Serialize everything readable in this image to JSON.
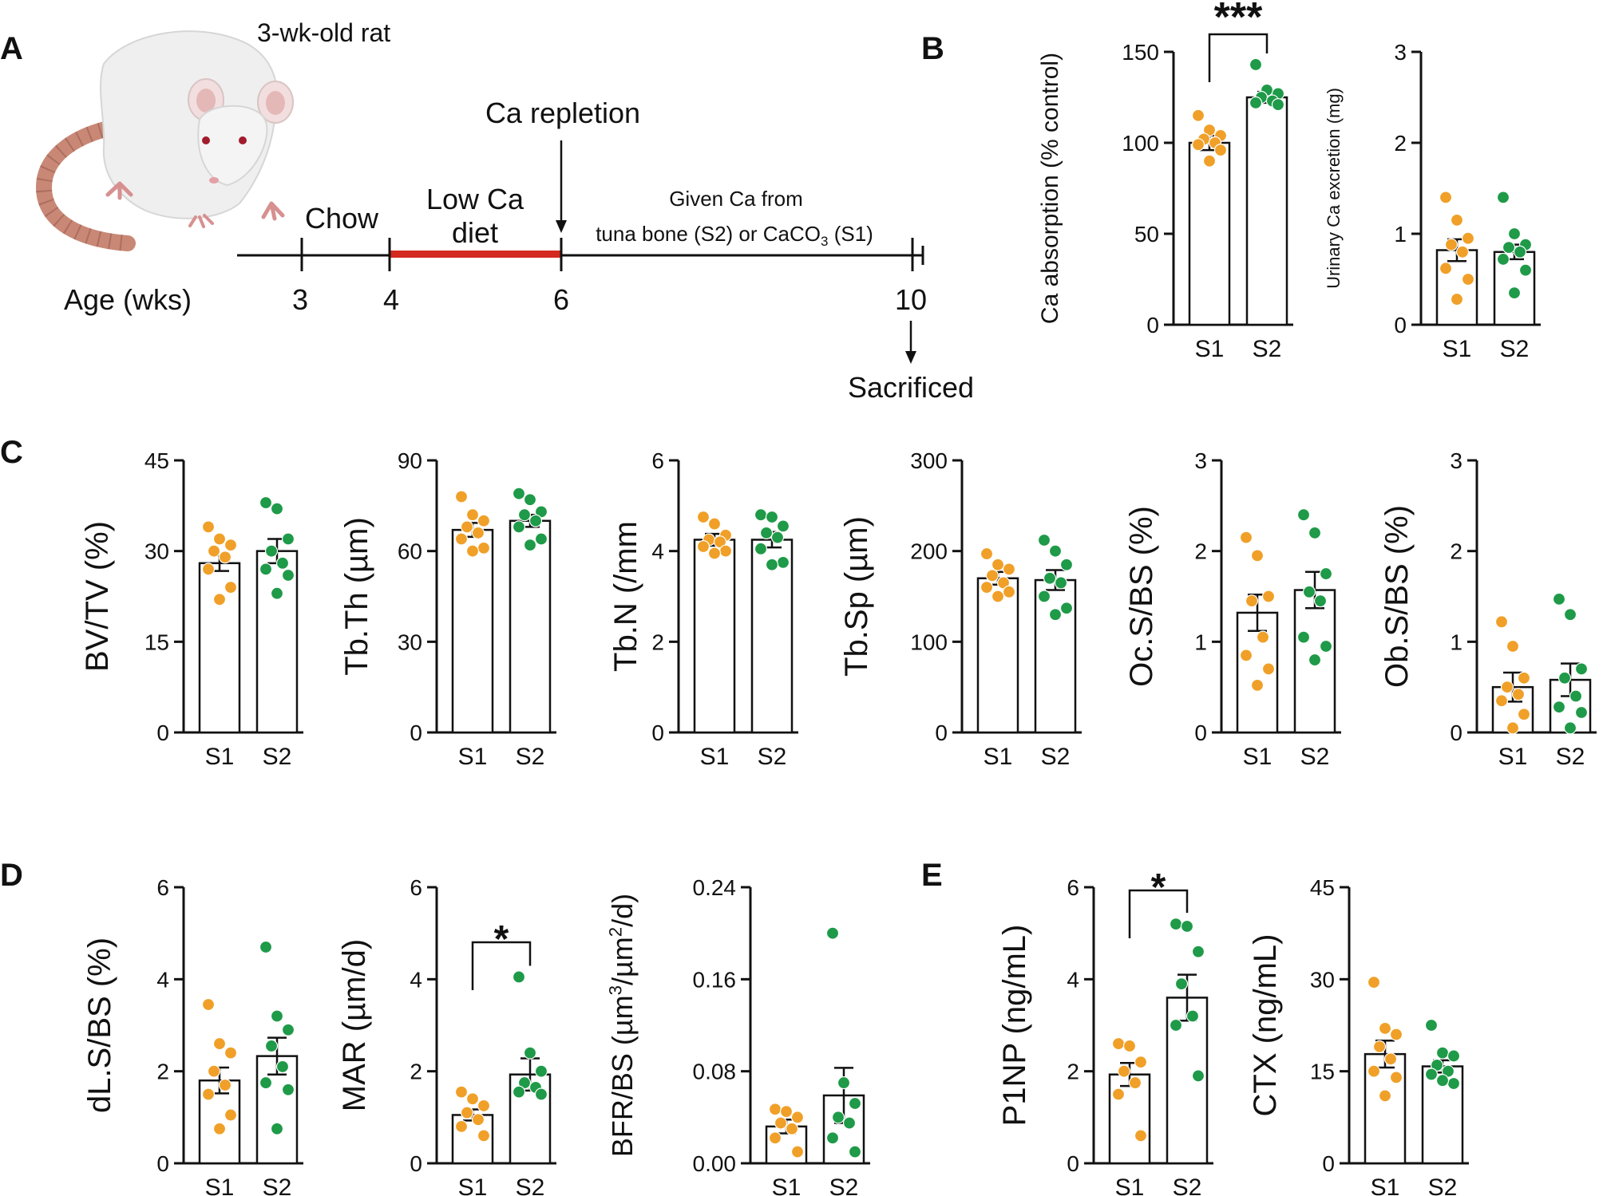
{
  "panels": {
    "A": "A",
    "B": "B",
    "C": "C",
    "D": "D",
    "E": "E"
  },
  "timeline": {
    "rat_label": "3-wk-old rat",
    "age_label": "Age (wks)",
    "ticks": [
      "3",
      "4",
      "6",
      "10"
    ],
    "chow_label": "Chow",
    "lowca_line1": "Low Ca",
    "lowca_line2": "diet",
    "repletion_label": "Ca repletion",
    "given_line1": "Given Ca from",
    "given_line2": "tuna bone (S2) or CaCO",
    "given_sub": "3",
    "given_tail": " (S1)",
    "sacrificed_label": "Sacrificed"
  },
  "colors": {
    "S1": "#f0a028",
    "S2": "#1e9a48",
    "lowca_bar": "#d42a20",
    "rat_body": "#efefef",
    "rat_tail": "#c98876"
  },
  "chart_data": [
    {
      "id": "B1",
      "type": "bar",
      "ylabel": "Ca absorption (% control)",
      "categories": [
        "S1",
        "S2"
      ],
      "ylim": [
        0,
        150
      ],
      "yticks": [
        "0",
        "50",
        "100",
        "150"
      ],
      "means": [
        100,
        125
      ],
      "sem": [
        4,
        3
      ],
      "points": [
        [
          115,
          107,
          104,
          102,
          100,
          99,
          96,
          90
        ],
        [
          143,
          129,
          127,
          125,
          123,
          122,
          121
        ]
      ],
      "significance": "***"
    },
    {
      "id": "B2",
      "type": "bar",
      "ylabel": "Urinary Ca excretion (mg)",
      "categories": [
        "S1",
        "S2"
      ],
      "ylim": [
        0,
        3
      ],
      "yticks": [
        "0",
        "1",
        "2",
        "3"
      ],
      "means": [
        0.82,
        0.8
      ],
      "sem": [
        0.12,
        0.08
      ],
      "points": [
        [
          1.4,
          1.15,
          0.95,
          0.88,
          0.8,
          0.62,
          0.5,
          0.28
        ],
        [
          1.4,
          1.0,
          0.88,
          0.85,
          0.8,
          0.72,
          0.6,
          0.35
        ]
      ]
    },
    {
      "id": "C1",
      "type": "bar",
      "ylabel": "BV/TV (%)",
      "categories": [
        "S1",
        "S2"
      ],
      "ylim": [
        0,
        45
      ],
      "yticks": [
        "0",
        "15",
        "30",
        "45"
      ],
      "means": [
        28,
        30
      ],
      "sem": [
        1.3,
        2
      ],
      "points": [
        [
          34,
          32,
          31,
          30,
          29,
          27,
          24,
          22
        ],
        [
          38,
          37,
          32,
          30,
          28,
          27,
          26,
          23
        ]
      ]
    },
    {
      "id": "C2",
      "type": "bar",
      "ylabel": "Tb.Th (µm)",
      "categories": [
        "S1",
        "S2"
      ],
      "ylim": [
        0,
        90
      ],
      "yticks": [
        "0",
        "30",
        "60",
        "90"
      ],
      "means": [
        67,
        70
      ],
      "sem": [
        2.3,
        2
      ],
      "points": [
        [
          78,
          72,
          70,
          68,
          66,
          64,
          61,
          60
        ],
        [
          79,
          77,
          73,
          72,
          70,
          68,
          64,
          62
        ]
      ]
    },
    {
      "id": "C3",
      "type": "bar",
      "ylabel": "Tb.N (/mm",
      "categories": [
        "S1",
        "S2"
      ],
      "ylim": [
        0,
        6
      ],
      "yticks": [
        "0",
        "2",
        "4",
        "6"
      ],
      "means": [
        4.25,
        4.25
      ],
      "sem": [
        0.13,
        0.17
      ],
      "points": [
        [
          4.75,
          4.6,
          4.35,
          4.25,
          4.2,
          4.1,
          4.0,
          3.95
        ],
        [
          4.8,
          4.75,
          4.55,
          4.4,
          4.3,
          4.05,
          3.75,
          3.7
        ]
      ]
    },
    {
      "id": "C4",
      "type": "bar",
      "ylabel": "Tb.Sp (µm)",
      "categories": [
        "S1",
        "S2"
      ],
      "ylim": [
        0,
        300
      ],
      "yticks": [
        "0",
        "100",
        "200",
        "300"
      ],
      "means": [
        170,
        168
      ],
      "sem": [
        7,
        11
      ],
      "points": [
        [
          197,
          185,
          180,
          173,
          165,
          160,
          155,
          150
        ],
        [
          212,
          200,
          185,
          170,
          165,
          150,
          137,
          130
        ]
      ]
    },
    {
      "id": "C5",
      "type": "bar",
      "ylabel": "Oc.S/BS (%)",
      "categories": [
        "S1",
        "S2"
      ],
      "ylim": [
        0,
        3
      ],
      "yticks": [
        "0",
        "1",
        "2",
        "3"
      ],
      "means": [
        1.32,
        1.57
      ],
      "sem": [
        0.2,
        0.2
      ],
      "points": [
        [
          2.15,
          1.95,
          1.5,
          1.45,
          1.05,
          0.85,
          0.7,
          0.52
        ],
        [
          2.4,
          2.2,
          1.75,
          1.55,
          1.45,
          1.05,
          0.95,
          0.8
        ]
      ]
    },
    {
      "id": "C6",
      "type": "bar",
      "ylabel": "Ob.S/BS (%)",
      "categories": [
        "S1",
        "S2"
      ],
      "ylim": [
        0,
        3
      ],
      "yticks": [
        "0",
        "1",
        "2",
        "3"
      ],
      "means": [
        0.5,
        0.58
      ],
      "sem": [
        0.16,
        0.18
      ],
      "points": [
        [
          1.22,
          0.95,
          0.6,
          0.5,
          0.42,
          0.35,
          0.2,
          0.05
        ],
        [
          1.47,
          1.3,
          0.7,
          0.6,
          0.4,
          0.28,
          0.22,
          0.05
        ]
      ]
    },
    {
      "id": "D1",
      "type": "bar",
      "ylabel": "dL.S/BS (%)",
      "categories": [
        "S1",
        "S2"
      ],
      "ylim": [
        0,
        6
      ],
      "yticks": [
        "0",
        "2",
        "4",
        "6"
      ],
      "means": [
        1.8,
        2.33
      ],
      "sem": [
        0.28,
        0.4
      ],
      "points": [
        [
          3.45,
          2.6,
          2.4,
          2.0,
          1.7,
          1.5,
          1.05,
          0.75
        ],
        [
          4.7,
          3.2,
          2.9,
          2.55,
          2.1,
          1.75,
          1.6,
          0.75
        ]
      ]
    },
    {
      "id": "D2",
      "type": "bar",
      "ylabel": "MAR (µm/d)",
      "categories": [
        "S1",
        "S2"
      ],
      "ylim": [
        0,
        6
      ],
      "yticks": [
        "0",
        "2",
        "4",
        "6"
      ],
      "means": [
        1.05,
        1.93
      ],
      "sem": [
        0.12,
        0.35
      ],
      "points": [
        [
          1.55,
          1.4,
          1.25,
          1.1,
          0.95,
          0.8,
          0.6
        ],
        [
          4.05,
          2.4,
          2.0,
          1.75,
          1.65,
          1.55,
          1.5
        ]
      ],
      "significance": "*"
    },
    {
      "id": "D3",
      "type": "bar",
      "ylabel_parts": [
        "BFR/BS (µm",
        "3",
        "/µm",
        "2",
        "/d)"
      ],
      "categories": [
        "S1",
        "S2"
      ],
      "ylim": [
        0,
        0.24
      ],
      "yticks": [
        "0.00",
        "0.08",
        "0.16",
        "0.24"
      ],
      "means": [
        0.032,
        0.059
      ],
      "sem": [
        0.006,
        0.024
      ],
      "points": [
        [
          0.047,
          0.045,
          0.04,
          0.035,
          0.03,
          0.022,
          0.01
        ],
        [
          0.2,
          0.07,
          0.052,
          0.04,
          0.035,
          0.022,
          0.01
        ]
      ]
    },
    {
      "id": "E1",
      "type": "bar",
      "ylabel": "P1NP (ng/mL)",
      "categories": [
        "S1",
        "S2"
      ],
      "ylim": [
        0,
        6
      ],
      "yticks": [
        "0",
        "2",
        "4",
        "6"
      ],
      "means": [
        1.93,
        3.6
      ],
      "sem": [
        0.25,
        0.5
      ],
      "points": [
        [
          2.6,
          2.55,
          2.2,
          2.0,
          1.75,
          1.5,
          0.6
        ],
        [
          5.2,
          5.15,
          4.6,
          3.9,
          3.2,
          3.0,
          1.9
        ]
      ],
      "significance": "*"
    },
    {
      "id": "E2",
      "type": "bar",
      "ylabel": "CTX (ng/mL)",
      "categories": [
        "S1",
        "S2"
      ],
      "ylim": [
        0,
        45
      ],
      "yticks": [
        "0",
        "15",
        "30",
        "45"
      ],
      "means": [
        17.8,
        15.8
      ],
      "sem": [
        2.2,
        1
      ],
      "points": [
        [
          29.5,
          22,
          21,
          19,
          17,
          15,
          14,
          11
        ],
        [
          22.5,
          18,
          17.5,
          16,
          15,
          14.5,
          13,
          13.5
        ]
      ]
    }
  ]
}
